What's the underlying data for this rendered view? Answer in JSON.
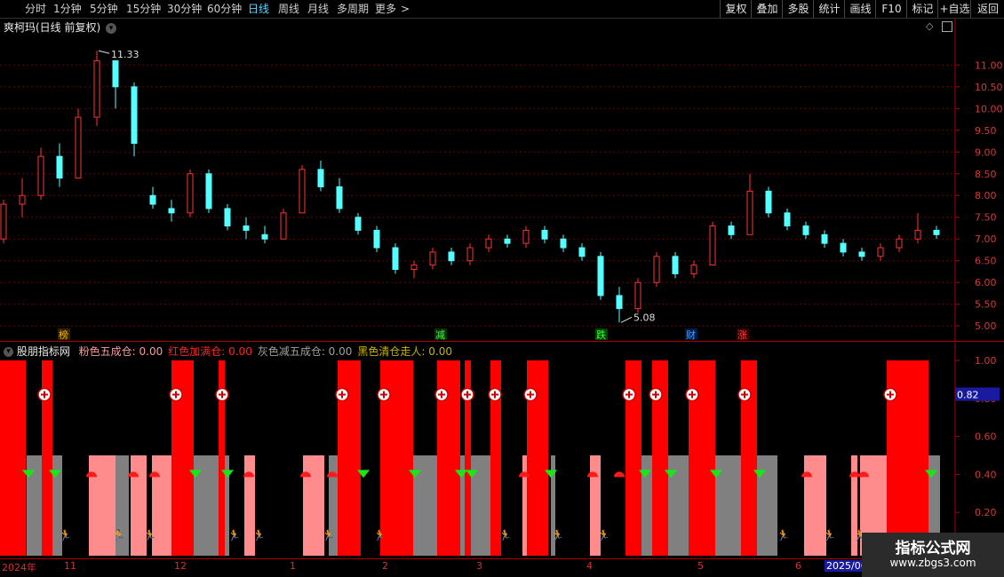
{
  "toolbar": {
    "periods": [
      "分时",
      "1分钟",
      "5分钟",
      "15分钟",
      "30分钟",
      "60分钟",
      "日线",
      "周线",
      "月线",
      "多周期",
      "更多"
    ],
    "more_suffix": ">",
    "active": "日线",
    "right_buttons": [
      "复权",
      "叠加",
      "多股",
      "统计",
      "画线",
      "F10",
      "标记",
      "+自选",
      "返回"
    ]
  },
  "main_chart": {
    "title": "爽柯玛(日线 前复权)",
    "y_ticks": [
      "11.00",
      "10.50",
      "10.00",
      "9.50",
      "9.00",
      "8.50",
      "8.00",
      "7.50",
      "7.00",
      "6.50",
      "6.00",
      "5.50",
      "5.00"
    ],
    "high_label": "11.33",
    "low_label": "5.08",
    "event_markers": [
      "榜",
      "减",
      "跌",
      "财",
      "涨"
    ],
    "up_color": "#ff3232",
    "down_color": "#54ffff"
  },
  "indicator": {
    "name": "股朋指标网",
    "legend": [
      {
        "text": "粉色五成仓: 0.00",
        "color": "#ff9a9a"
      },
      {
        "text": "红色加满仓: 0.00",
        "color": "#ff2020"
      },
      {
        "text": "灰色减五成仓: 0.00",
        "color": "#a0a0a0"
      },
      {
        "text": "黑色清仓走人: 0.00",
        "color": "#c8b400"
      }
    ],
    "y_ticks": [
      "1.00",
      "0.80",
      "0.60",
      "0.40",
      "0.20"
    ],
    "current_value": "0.82"
  },
  "time_axis": {
    "labels": [
      "2024年",
      "11",
      "12",
      "1",
      "2",
      "3",
      "4",
      "5",
      "6",
      "2025/06"
    ]
  },
  "watermark": {
    "title": "指标公式网",
    "url": "www.zbgs3.com"
  },
  "chart_data": {
    "type": "candlestick",
    "title": "爽柯玛(日线 前复权)",
    "y_range": [
      4.8,
      11.7
    ],
    "annotations": {
      "high": 11.33,
      "low": 5.08
    },
    "candles_ohlc_approx": [
      [
        7.0,
        7.9,
        6.9,
        7.8
      ],
      [
        7.8,
        8.4,
        7.5,
        8.0
      ],
      [
        8.0,
        9.1,
        7.9,
        8.9
      ],
      [
        8.9,
        9.2,
        8.2,
        8.4
      ],
      [
        8.4,
        10.0,
        8.4,
        9.8
      ],
      [
        9.8,
        11.33,
        9.6,
        11.1
      ],
      [
        11.1,
        11.1,
        10.0,
        10.5
      ],
      [
        10.5,
        10.6,
        8.9,
        9.2
      ],
      [
        8.0,
        8.2,
        7.7,
        7.8
      ],
      [
        7.7,
        7.9,
        7.4,
        7.6
      ],
      [
        7.6,
        8.6,
        7.5,
        8.5
      ],
      [
        8.5,
        8.6,
        7.6,
        7.7
      ],
      [
        7.7,
        7.8,
        7.2,
        7.3
      ],
      [
        7.3,
        7.5,
        7.0,
        7.2
      ],
      [
        7.1,
        7.3,
        6.9,
        7.0
      ],
      [
        7.0,
        7.7,
        7.0,
        7.6
      ],
      [
        7.6,
        8.7,
        7.6,
        8.6
      ],
      [
        8.6,
        8.8,
        8.1,
        8.2
      ],
      [
        8.2,
        8.4,
        7.6,
        7.7
      ],
      [
        7.5,
        7.6,
        7.1,
        7.2
      ],
      [
        7.2,
        7.3,
        6.7,
        6.8
      ],
      [
        6.8,
        6.9,
        6.2,
        6.3
      ],
      [
        6.3,
        6.5,
        6.1,
        6.4
      ],
      [
        6.4,
        6.8,
        6.3,
        6.7
      ],
      [
        6.7,
        6.8,
        6.4,
        6.5
      ],
      [
        6.5,
        6.9,
        6.4,
        6.8
      ],
      [
        6.8,
        7.1,
        6.7,
        7.0
      ],
      [
        7.0,
        7.1,
        6.8,
        6.9
      ],
      [
        6.9,
        7.3,
        6.8,
        7.2
      ],
      [
        7.2,
        7.3,
        6.9,
        7.0
      ],
      [
        7.0,
        7.1,
        6.7,
        6.8
      ],
      [
        6.8,
        6.9,
        6.5,
        6.6
      ],
      [
        6.6,
        6.7,
        5.6,
        5.7
      ],
      [
        5.7,
        5.9,
        5.08,
        5.4
      ],
      [
        5.4,
        6.1,
        5.3,
        6.0
      ],
      [
        6.0,
        6.7,
        5.9,
        6.6
      ],
      [
        6.6,
        6.7,
        6.1,
        6.2
      ],
      [
        6.2,
        6.5,
        6.1,
        6.4
      ],
      [
        6.4,
        7.4,
        6.4,
        7.3
      ],
      [
        7.3,
        7.4,
        7.0,
        7.1
      ],
      [
        7.1,
        8.5,
        7.1,
        8.1
      ],
      [
        8.1,
        8.2,
        7.5,
        7.6
      ],
      [
        7.6,
        7.7,
        7.2,
        7.3
      ],
      [
        7.3,
        7.4,
        7.0,
        7.1
      ],
      [
        7.1,
        7.2,
        6.8,
        6.9
      ],
      [
        6.9,
        7.0,
        6.6,
        6.7
      ],
      [
        6.7,
        6.8,
        6.5,
        6.6
      ],
      [
        6.6,
        6.9,
        6.5,
        6.8
      ],
      [
        6.8,
        7.1,
        6.7,
        7.0
      ],
      [
        7.0,
        7.6,
        6.9,
        7.2
      ],
      [
        7.2,
        7.3,
        7.0,
        7.1
      ]
    ]
  }
}
